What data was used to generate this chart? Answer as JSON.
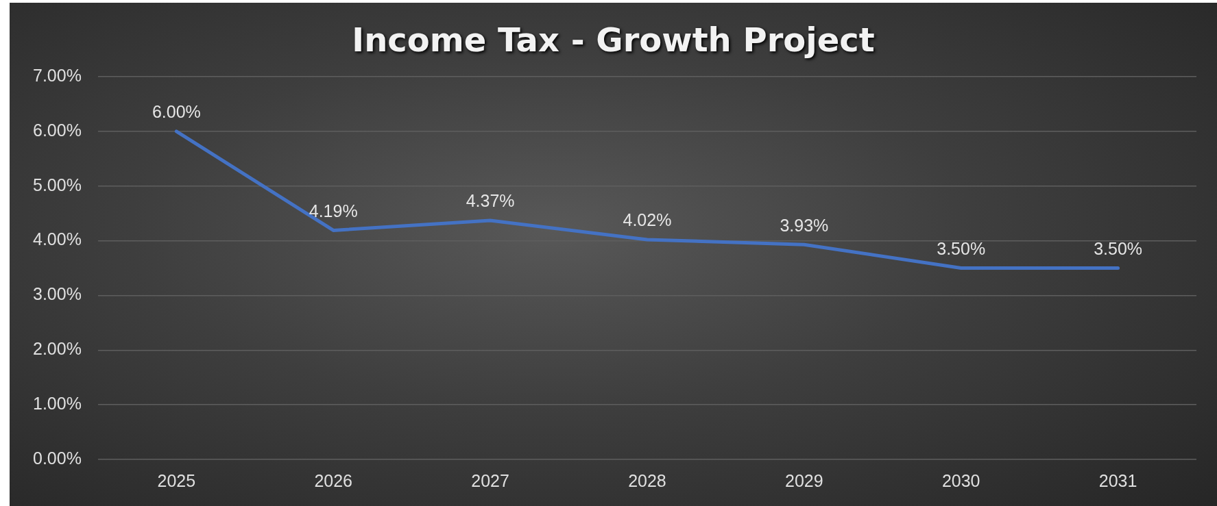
{
  "chart_data": {
    "type": "line",
    "title": "Income Tax - Growth Project",
    "categories": [
      "2025",
      "2026",
      "2027",
      "2028",
      "2029",
      "2030",
      "2031"
    ],
    "series": [
      {
        "color": "#4472c4",
        "values": [
          6.0,
          4.19,
          4.37,
          4.02,
          3.93,
          3.5,
          3.5
        ],
        "value_labels": [
          "6.00%",
          "4.19%",
          "4.37%",
          "4.02%",
          "3.93%",
          "3.50%",
          "3.50%"
        ]
      }
    ],
    "ylim": [
      0,
      7
    ],
    "yticks": [
      {
        "value": 0,
        "label": "0.00%"
      },
      {
        "value": 1,
        "label": "1.00%"
      },
      {
        "value": 2,
        "label": "2.00%"
      },
      {
        "value": 3,
        "label": "3.00%"
      },
      {
        "value": 4,
        "label": "4.00%"
      },
      {
        "value": 5,
        "label": "5.00%"
      },
      {
        "value": 6,
        "label": "6.00%"
      },
      {
        "value": 7,
        "label": "7.00%"
      }
    ],
    "grid": "y",
    "legend": false,
    "marker": "none",
    "line_style": "solid"
  }
}
